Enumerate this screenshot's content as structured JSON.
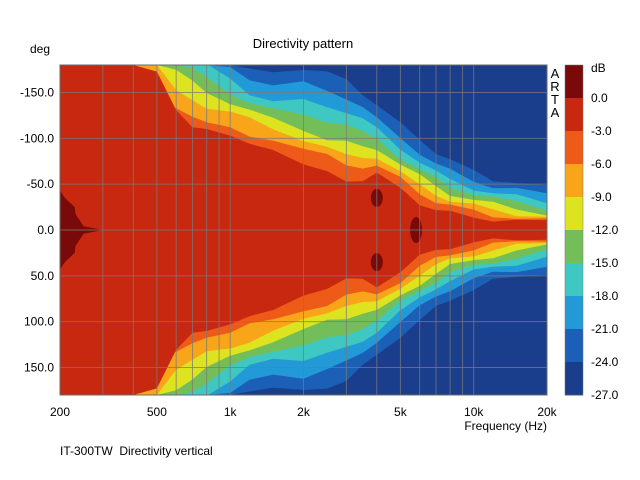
{
  "chart_data": {
    "type": "heatmap",
    "title": "Directivity pattern",
    "xlabel": "Frequency (Hz)",
    "ylabel": "deg",
    "x_scale": "log",
    "xlim": [
      200,
      20000
    ],
    "ylim": [
      180,
      -180
    ],
    "x_ticks": [
      {
        "value": 200,
        "label": "200"
      },
      {
        "value": 500,
        "label": "500"
      },
      {
        "value": 1000,
        "label": "1k"
      },
      {
        "value": 2000,
        "label": "2k"
      },
      {
        "value": 5000,
        "label": "5k"
      },
      {
        "value": 10000,
        "label": "10k"
      },
      {
        "value": 20000,
        "label": "20k"
      }
    ],
    "x_minor_gridlines": [
      300,
      400,
      600,
      700,
      800,
      900,
      3000,
      4000,
      6000,
      7000,
      8000,
      9000
    ],
    "y_ticks": [
      {
        "value": -150,
        "label": "-150.0"
      },
      {
        "value": -100,
        "label": "-100.0"
      },
      {
        "value": -50,
        "label": "-50.0"
      },
      {
        "value": 0,
        "label": "0.0"
      },
      {
        "value": 50,
        "label": "50.0"
      },
      {
        "value": 100,
        "label": "100.0"
      },
      {
        "value": 150,
        "label": "150.0"
      }
    ],
    "grid": true,
    "colorbar": {
      "unit": "dB",
      "levels": [
        {
          "label": "0.0",
          "color": "#7a0a0a"
        },
        {
          "label": "-3.0",
          "color": "#c8280f"
        },
        {
          "label": "-6.0",
          "color": "#ee5a17"
        },
        {
          "label": "-9.0",
          "color": "#f8a51a"
        },
        {
          "label": "-12.0",
          "color": "#dde31f"
        },
        {
          "label": "-15.0",
          "color": "#74be5a"
        },
        {
          "label": "-18.0",
          "color": "#3fc7c2"
        },
        {
          "label": "-21.0",
          "color": "#229ad8"
        },
        {
          "label": "-24.0",
          "color": "#1c5fb6"
        },
        {
          "label": "-27.0",
          "color": "#1a3d8c"
        }
      ]
    },
    "contour_model": {
      "description_of_beamwidth_in_degrees_at_each_level_vs_frequency": "dB boundaries",
      "freqs": [
        200,
        250,
        300,
        400,
        500,
        600,
        700,
        800,
        1000,
        1200,
        1500,
        2000,
        2500,
        3000,
        3500,
        4000,
        5000,
        6000,
        7000,
        8000,
        10000,
        12000,
        15000,
        20000
      ],
      "boundary_angles": {
        "-3": [
          40,
          5,
          0,
          0,
          0,
          0,
          0,
          0,
          0,
          0,
          0,
          0,
          0,
          0,
          0,
          0,
          0,
          0,
          0,
          0,
          0,
          0,
          0,
          0
        ],
        "-6": [
          180,
          180,
          180,
          180,
          170,
          130,
          115,
          110,
          100,
          95,
          90,
          70,
          62,
          55,
          55,
          60,
          45,
          30,
          22,
          18,
          14,
          12,
          10,
          8
        ],
        "-9": [
          180,
          180,
          170,
          150,
          140,
          130,
          125,
          120,
          110,
          100,
          100,
          90,
          80,
          70,
          70,
          70,
          55,
          40,
          32,
          26,
          20,
          16,
          14,
          10
        ],
        "-12": [
          180,
          180,
          180,
          180,
          180,
          150,
          140,
          135,
          130,
          120,
          110,
          100,
          90,
          80,
          80,
          80,
          62,
          48,
          40,
          32,
          26,
          22,
          18,
          14
        ],
        "-15": [
          180,
          180,
          180,
          180,
          180,
          175,
          160,
          150,
          140,
          130,
          120,
          110,
          100,
          95,
          90,
          90,
          72,
          58,
          48,
          40,
          32,
          28,
          24,
          18
        ],
        "-18": [
          180,
          180,
          180,
          180,
          180,
          180,
          175,
          165,
          150,
          140,
          130,
          125,
          120,
          115,
          105,
          100,
          80,
          65,
          55,
          48,
          40,
          34,
          30,
          24
        ],
        "-21": [
          180,
          180,
          180,
          180,
          180,
          180,
          180,
          178,
          165,
          150,
          140,
          140,
          135,
          130,
          120,
          110,
          90,
          75,
          62,
          55,
          46,
          40,
          36,
          30
        ],
        "-24": [
          180,
          180,
          180,
          180,
          180,
          180,
          180,
          180,
          175,
          165,
          160,
          160,
          150,
          145,
          135,
          120,
          100,
          85,
          72,
          64,
          54,
          48,
          44,
          38
        ],
        "-27": [
          180,
          180,
          180,
          180,
          180,
          180,
          180,
          180,
          180,
          175,
          175,
          175,
          170,
          165,
          150,
          135,
          115,
          100,
          85,
          75,
          64,
          56,
          52,
          46
        ]
      },
      "local_maxima": [
        {
          "freq": 4000,
          "angle": -35,
          "level": "0.0"
        },
        {
          "freq": 4000,
          "angle": 35,
          "level": "0.0"
        },
        {
          "freq": 5800,
          "angle": 0,
          "level": "0.0"
        }
      ]
    }
  },
  "watermark": "ARTA",
  "caption": "IT-300TW  Directivity vertical"
}
